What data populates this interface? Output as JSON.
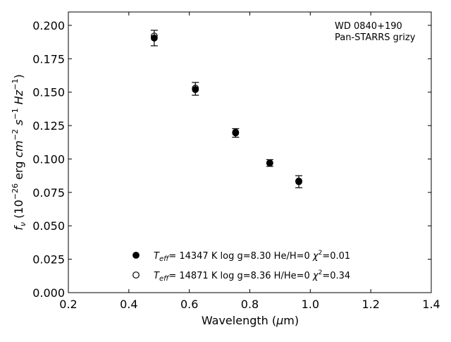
{
  "chart_data": {
    "type": "scatter",
    "title": "",
    "xlabel": "Wavelength (μm)",
    "ylabel": "f_ν (10^-26 erg cm^-2 s^-1 Hz^-1)",
    "xlim": [
      0.2,
      1.4
    ],
    "ylim": [
      0.0,
      0.21
    ],
    "x_ticks": [
      0.2,
      0.4,
      0.6,
      0.8,
      1.0,
      1.2,
      1.4
    ],
    "x_tick_labels": [
      "0.2",
      "0.4",
      "0.6",
      "0.8",
      "1.0",
      "1.2",
      "1.4"
    ],
    "y_ticks": [
      0.0,
      0.025,
      0.05,
      0.075,
      0.1,
      0.125,
      0.15,
      0.175,
      0.2
    ],
    "y_tick_labels": [
      "0.000",
      "0.025",
      "0.050",
      "0.075",
      "0.100",
      "0.125",
      "0.150",
      "0.175",
      "0.200"
    ],
    "grid": false,
    "annotation": [
      "WD 0840+190",
      "Pan-STARRS grizy"
    ],
    "annotation_placement": "top-right",
    "legend_placement": "lower-center",
    "observed": {
      "x": [
        0.484,
        0.62,
        0.753,
        0.866,
        0.962
      ],
      "y": [
        0.1905,
        0.1525,
        0.1195,
        0.097,
        0.083
      ],
      "err": [
        0.0058,
        0.0048,
        0.0032,
        0.0025,
        0.0045
      ]
    },
    "series": [
      {
        "name": "T_eff= 14347 K  log g=8.30  He/H=0  χ²=0.01",
        "marker": "filled-circle",
        "x": [
          0.484,
          0.62,
          0.753,
          0.866,
          0.962
        ],
        "y": [
          0.1905,
          0.152,
          0.1195,
          0.097,
          0.0835
        ]
      },
      {
        "name": "T_eff= 14871 K  log g=8.36  H/He=0  χ²=0.34",
        "marker": "open-circle",
        "x": [
          0.484,
          0.62,
          0.753,
          0.866,
          0.962
        ],
        "y": [
          0.192,
          0.153,
          0.12,
          0.097,
          0.083
        ]
      }
    ],
    "legend": [
      {
        "marker": "filled-circle",
        "teff": "14347 K",
        "logg": "log g=8.30",
        "comp": "He/H=0",
        "chi": "=0.01"
      },
      {
        "marker": "open-circle",
        "teff": "14871 K",
        "logg": "log g=8.36",
        "comp": "H/He=0",
        "chi": "=0.34"
      }
    ],
    "colors": {
      "marker": "#000000",
      "axes": "#000000",
      "background": "#ffffff"
    }
  }
}
